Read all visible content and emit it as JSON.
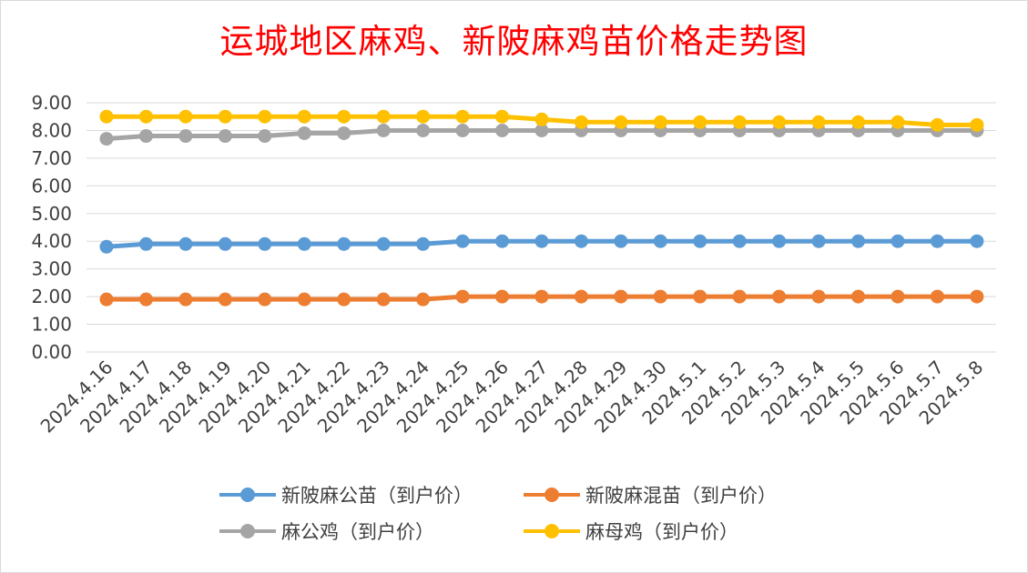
{
  "chart_data": {
    "type": "line",
    "title": "运城地区麻鸡、新陂麻鸡苗价格走势图",
    "xlabel": "",
    "ylabel": "",
    "categories": [
      "2024.4.16",
      "2024.4.17",
      "2024.4.18",
      "2024.4.19",
      "2024.4.20",
      "2024.4.21",
      "2024.4.22",
      "2024.4.23",
      "2024.4.24",
      "2024.4.25",
      "2024.4.26",
      "2024.4.27",
      "2024.4.28",
      "2024.4.29",
      "2024.4.30",
      "2024.5.1",
      "2024.5.2",
      "2024.5.3",
      "2024.5.4",
      "2024.5.5",
      "2024.5.6",
      "2024.5.7",
      "2024.5.8"
    ],
    "ylim": [
      0,
      9
    ],
    "yticks": [
      "0.00",
      "1.00",
      "2.00",
      "3.00",
      "4.00",
      "5.00",
      "6.00",
      "7.00",
      "8.00",
      "9.00"
    ],
    "grid": true,
    "legend_position": "bottom",
    "series": [
      {
        "name": "新陂麻公苗（到户价）",
        "color": "#5b9bd5",
        "values": [
          3.8,
          3.9,
          3.9,
          3.9,
          3.9,
          3.9,
          3.9,
          3.9,
          3.9,
          4.0,
          4.0,
          4.0,
          4.0,
          4.0,
          4.0,
          4.0,
          4.0,
          4.0,
          4.0,
          4.0,
          4.0,
          4.0,
          4.0
        ]
      },
      {
        "name": "新陂麻混苗（到户价）",
        "color": "#ed7d31",
        "values": [
          1.9,
          1.9,
          1.9,
          1.9,
          1.9,
          1.9,
          1.9,
          1.9,
          1.9,
          2.0,
          2.0,
          2.0,
          2.0,
          2.0,
          2.0,
          2.0,
          2.0,
          2.0,
          2.0,
          2.0,
          2.0,
          2.0,
          2.0
        ]
      },
      {
        "name": "麻公鸡（到户价）",
        "color": "#a5a5a5",
        "values": [
          7.7,
          7.8,
          7.8,
          7.8,
          7.8,
          7.9,
          7.9,
          8.0,
          8.0,
          8.0,
          8.0,
          8.0,
          8.0,
          8.0,
          8.0,
          8.0,
          8.0,
          8.0,
          8.0,
          8.0,
          8.0,
          8.0,
          8.0
        ]
      },
      {
        "name": "麻母鸡（到户价）",
        "color": "#ffc000",
        "values": [
          8.5,
          8.5,
          8.5,
          8.5,
          8.5,
          8.5,
          8.5,
          8.5,
          8.5,
          8.5,
          8.5,
          8.4,
          8.3,
          8.3,
          8.3,
          8.3,
          8.3,
          8.3,
          8.3,
          8.3,
          8.3,
          8.2,
          8.2
        ]
      }
    ]
  }
}
